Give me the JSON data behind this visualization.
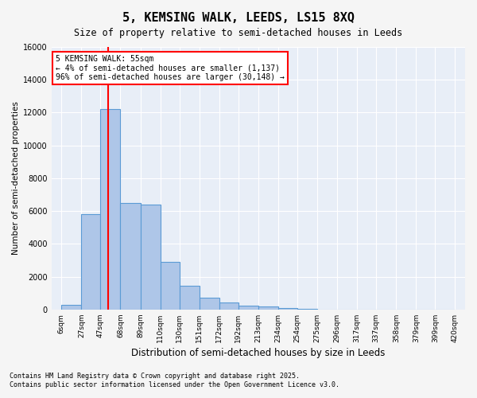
{
  "title": "5, KEMSING WALK, LEEDS, LS15 8XQ",
  "subtitle": "Size of property relative to semi-detached houses in Leeds",
  "xlabel": "Distribution of semi-detached houses by size in Leeds",
  "ylabel": "Number of semi-detached properties",
  "bar_color": "#aec6e8",
  "bar_edge_color": "#5b9bd5",
  "background_color": "#e8eef7",
  "grid_color": "#ffffff",
  "red_line_x": 55,
  "annotation_text": "5 KEMSING WALK: 55sqm\n← 4% of semi-detached houses are smaller (1,137)\n96% of semi-detached houses are larger (30,148) →",
  "footer_line1": "Contains HM Land Registry data © Crown copyright and database right 2025.",
  "footer_line2": "Contains public sector information licensed under the Open Government Licence v3.0.",
  "bin_edges": [
    6,
    27,
    47,
    68,
    89,
    110,
    130,
    151,
    172,
    192,
    213,
    234,
    254,
    275,
    296,
    317,
    337,
    358,
    379,
    399,
    420
  ],
  "bin_labels": [
    "6sqm",
    "27sqm",
    "47sqm",
    "68sqm",
    "89sqm",
    "110sqm",
    "130sqm",
    "151sqm",
    "172sqm",
    "192sqm",
    "213sqm",
    "234sqm",
    "254sqm",
    "275sqm",
    "296sqm",
    "317sqm",
    "337sqm",
    "358sqm",
    "379sqm",
    "399sqm",
    "420sqm"
  ],
  "counts": [
    300,
    5800,
    12200,
    6500,
    6400,
    2900,
    1450,
    700,
    450,
    250,
    170,
    80,
    40,
    15,
    5,
    3,
    2,
    1,
    1,
    0
  ],
  "ylim": [
    0,
    16000
  ],
  "yticks": [
    0,
    2000,
    4000,
    6000,
    8000,
    10000,
    12000,
    14000,
    16000
  ]
}
